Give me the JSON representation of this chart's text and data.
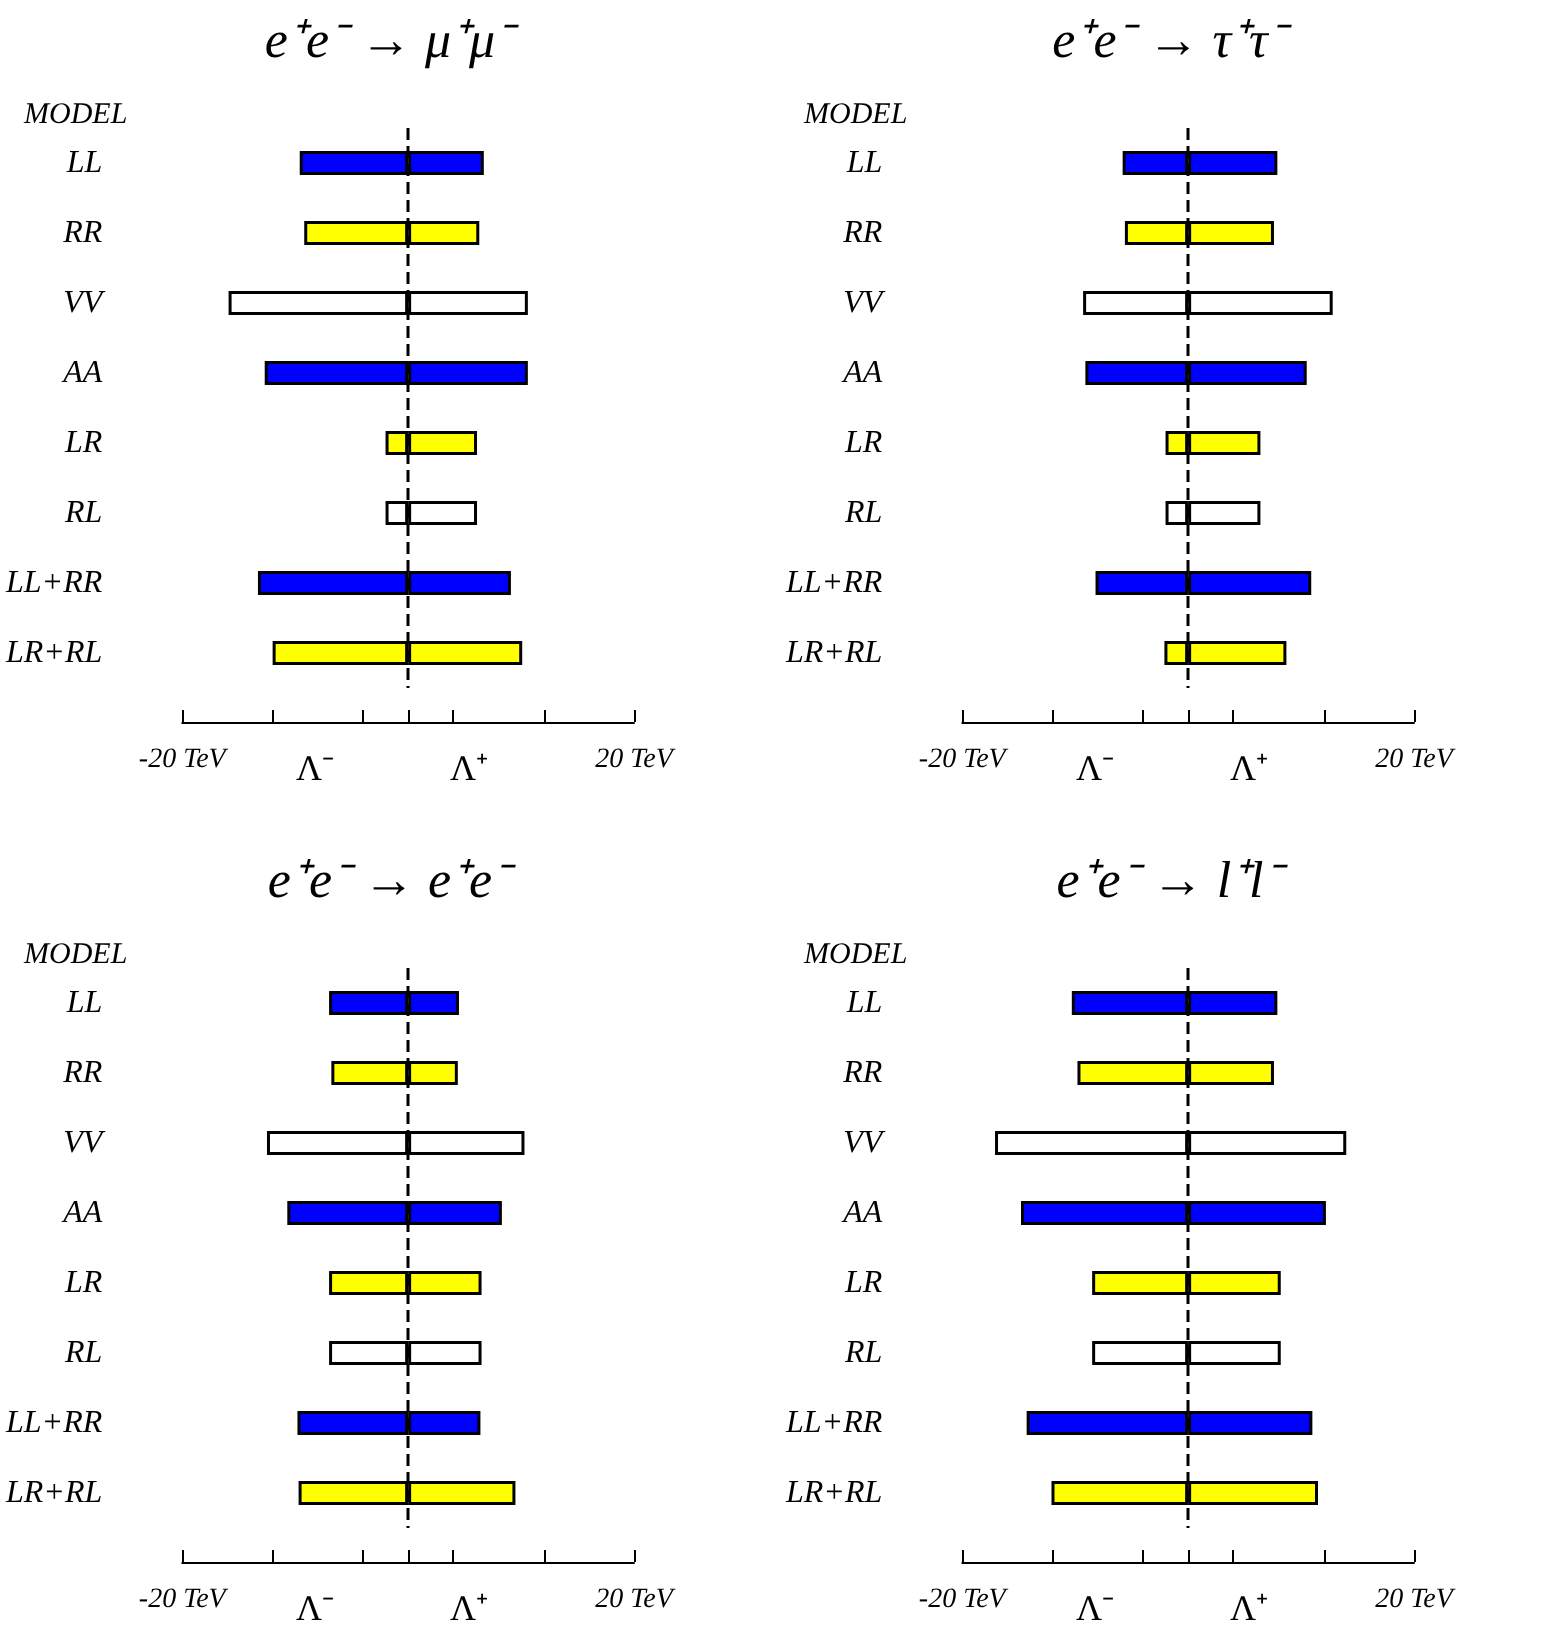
{
  "chart_data": [
    {
      "type": "bar",
      "orientation": "horizontal",
      "stacked": true,
      "title": "e⁺e⁻ → μ⁺μ⁻",
      "ylabel": "MODEL",
      "categories": [
        "LL",
        "RR",
        "VV",
        "AA",
        "LR",
        "RL",
        "LL+RR",
        "LR+RL"
      ],
      "series": [
        {
          "values": [
            -9.6,
            -9.2,
            -15.9,
            -12.7,
            -2.0,
            -2.0,
            -13.3,
            -12.0
          ],
          "colors": [
            "#0000ff",
            "#ffff00",
            "#ffffff",
            "#0000ff",
            "#ffff00",
            "#ffffff",
            "#0000ff",
            "#ffff00"
          ]
        },
        {
          "values": [
            6.7,
            6.3,
            10.6,
            10.6,
            6.1,
            6.1,
            9.1,
            10.1
          ],
          "colors": [
            "#0000ff",
            "#ffff00",
            "#ffffff",
            "#0000ff",
            "#ffff00",
            "#ffffff",
            "#0000ff",
            "#ffff00"
          ]
        }
      ],
      "xlim": [
        -20,
        20
      ],
      "xticks": [
        {
          "value": -20,
          "label": "-20 TeV"
        },
        {
          "value": -12,
          "label": null
        },
        {
          "value": -4,
          "label": null
        },
        {
          "value": 0,
          "label": null
        },
        {
          "value": 4,
          "label": null
        },
        {
          "value": 12,
          "label": null
        },
        {
          "value": 20,
          "label": "20 TeV"
        }
      ],
      "annotations": [
        "Λ⁻",
        "Λ⁺"
      ],
      "ref_lines": [
        {
          "axis": "x",
          "value": 0,
          "line_style": "dashed"
        }
      ],
      "grid": false
    },
    {
      "type": "bar",
      "orientation": "horizontal",
      "stacked": true,
      "title": "e⁺e⁻ → τ⁺τ⁻",
      "ylabel": "MODEL",
      "categories": [
        "LL",
        "RR",
        "VV",
        "AA",
        "LR",
        "RL",
        "LL+RR",
        "LR+RL"
      ],
      "series": [
        {
          "values": [
            -5.8,
            -5.6,
            -9.3,
            -9.1,
            -2.0,
            -2.0,
            -8.2,
            -2.1
          ],
          "colors": [
            "#0000ff",
            "#ffff00",
            "#ffffff",
            "#0000ff",
            "#ffff00",
            "#ffffff",
            "#0000ff",
            "#ffff00"
          ]
        },
        {
          "values": [
            7.9,
            7.6,
            12.8,
            10.5,
            6.4,
            6.4,
            10.9,
            8.7
          ],
          "colors": [
            "#0000ff",
            "#ffff00",
            "#ffffff",
            "#0000ff",
            "#ffff00",
            "#ffffff",
            "#0000ff",
            "#ffff00"
          ]
        }
      ],
      "xlim": [
        -20,
        20
      ],
      "xticks": [
        {
          "value": -20,
          "label": "-20 TeV"
        },
        {
          "value": -12,
          "label": null
        },
        {
          "value": -4,
          "label": null
        },
        {
          "value": 0,
          "label": null
        },
        {
          "value": 4,
          "label": null
        },
        {
          "value": 12,
          "label": null
        },
        {
          "value": 20,
          "label": "20 TeV"
        }
      ],
      "annotations": [
        "Λ⁻",
        "Λ⁺"
      ],
      "ref_lines": [
        {
          "axis": "x",
          "value": 0,
          "line_style": "dashed"
        }
      ],
      "grid": false
    },
    {
      "type": "bar",
      "orientation": "horizontal",
      "stacked": true,
      "title": "e⁺e⁻ → e⁺e⁻",
      "ylabel": "MODEL",
      "categories": [
        "LL",
        "RR",
        "VV",
        "AA",
        "LR",
        "RL",
        "LL+RR",
        "LR+RL"
      ],
      "series": [
        {
          "values": [
            -7.0,
            -6.8,
            -12.5,
            -10.7,
            -7.0,
            -7.0,
            -9.8,
            -9.7
          ],
          "colors": [
            "#0000ff",
            "#ffff00",
            "#ffffff",
            "#0000ff",
            "#ffff00",
            "#ffffff",
            "#0000ff",
            "#ffff00"
          ]
        },
        {
          "values": [
            4.5,
            4.4,
            10.3,
            8.3,
            6.5,
            6.5,
            6.4,
            9.5
          ],
          "colors": [
            "#0000ff",
            "#ffff00",
            "#ffffff",
            "#0000ff",
            "#ffff00",
            "#ffffff",
            "#0000ff",
            "#ffff00"
          ]
        }
      ],
      "xlim": [
        -20,
        20
      ],
      "xticks": [
        {
          "value": -20,
          "label": "-20 TeV"
        },
        {
          "value": -12,
          "label": null
        },
        {
          "value": -4,
          "label": null
        },
        {
          "value": 0,
          "label": null
        },
        {
          "value": 4,
          "label": null
        },
        {
          "value": 12,
          "label": null
        },
        {
          "value": 20,
          "label": "20 TeV"
        }
      ],
      "annotations": [
        "Λ⁻",
        "Λ⁺"
      ],
      "ref_lines": [
        {
          "axis": "x",
          "value": 0,
          "line_style": "dashed"
        }
      ],
      "grid": false
    },
    {
      "type": "bar",
      "orientation": "horizontal",
      "stacked": true,
      "title": "e⁺e⁻ → l⁺l⁻",
      "ylabel": "MODEL",
      "categories": [
        "LL",
        "RR",
        "VV",
        "AA",
        "LR",
        "RL",
        "LL+RR",
        "LR+RL"
      ],
      "series": [
        {
          "values": [
            -10.3,
            -9.8,
            -17.1,
            -14.8,
            -8.5,
            -8.5,
            -14.3,
            -12.1
          ],
          "colors": [
            "#0000ff",
            "#ffff00",
            "#ffffff",
            "#0000ff",
            "#ffff00",
            "#ffffff",
            "#0000ff",
            "#ffff00"
          ]
        },
        {
          "values": [
            7.9,
            7.6,
            14.0,
            12.2,
            8.2,
            8.2,
            11.0,
            11.5
          ],
          "colors": [
            "#0000ff",
            "#ffff00",
            "#ffffff",
            "#0000ff",
            "#ffff00",
            "#ffffff",
            "#0000ff",
            "#ffff00"
          ]
        }
      ],
      "xlim": [
        -20,
        20
      ],
      "xticks": [
        {
          "value": -20,
          "label": "-20 TeV"
        },
        {
          "value": -12,
          "label": null
        },
        {
          "value": -4,
          "label": null
        },
        {
          "value": 0,
          "label": null
        },
        {
          "value": 4,
          "label": null
        },
        {
          "value": 12,
          "label": null
        },
        {
          "value": 20,
          "label": "20 TeV"
        }
      ],
      "annotations": [
        "Λ⁻",
        "Λ⁺"
      ],
      "ref_lines": [
        {
          "axis": "x",
          "value": 0,
          "line_style": "dashed"
        }
      ],
      "grid": false
    }
  ]
}
